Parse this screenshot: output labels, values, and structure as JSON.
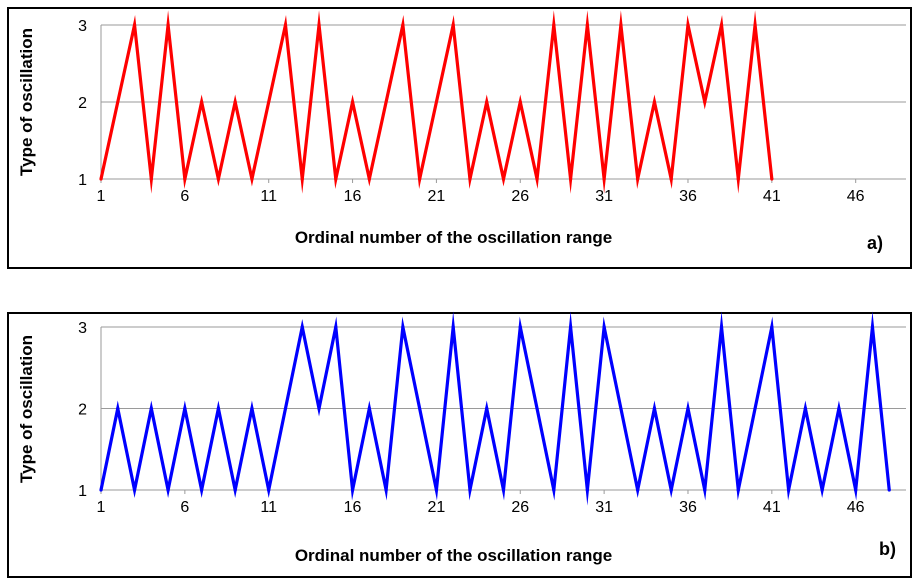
{
  "chart_data": [
    {
      "type": "line",
      "panel_label": "a)",
      "xlabel": "Ordinal number of the oscillation range",
      "ylabel": "Type of oscillation",
      "x_ticks": [
        "1",
        "6",
        "11",
        "16",
        "21",
        "26",
        "31",
        "36",
        "41",
        "46"
      ],
      "y_ticks": [
        "1",
        "2",
        "3"
      ],
      "xlim": [
        1,
        49
      ],
      "ylim": [
        1,
        3
      ],
      "grid": "horizontal",
      "series": [
        {
          "color": "#ff0000",
          "x": [
            1,
            3,
            4,
            5,
            6,
            7,
            8,
            9,
            10,
            12,
            13,
            14,
            15,
            16,
            17,
            19,
            20,
            22,
            23,
            24,
            25,
            26,
            27,
            28,
            29,
            30,
            31,
            32,
            33,
            34,
            35,
            36,
            37,
            38,
            39,
            40,
            41
          ],
          "values": [
            1,
            3,
            1,
            3,
            1,
            2,
            1,
            2,
            1,
            3,
            1,
            3,
            1,
            2,
            1,
            3,
            1,
            3,
            1,
            2,
            1,
            2,
            1,
            3,
            1,
            3,
            1,
            3,
            1,
            2,
            1,
            3,
            2,
            3,
            1,
            3,
            1
          ]
        }
      ]
    },
    {
      "type": "line",
      "panel_label": "b)",
      "xlabel": "Ordinal number of the oscillation range",
      "ylabel": "Type of oscillation",
      "x_ticks": [
        "1",
        "6",
        "11",
        "16",
        "21",
        "26",
        "31",
        "36",
        "41",
        "46"
      ],
      "y_ticks": [
        "1",
        "2",
        "3"
      ],
      "xlim": [
        1,
        49
      ],
      "ylim": [
        1,
        3
      ],
      "grid": "horizontal",
      "series": [
        {
          "color": "#0000ff",
          "x": [
            1,
            2,
            3,
            4,
            5,
            6,
            7,
            8,
            9,
            10,
            11,
            13,
            14,
            15,
            16,
            17,
            18,
            19,
            21,
            22,
            23,
            24,
            25,
            26,
            28,
            29,
            30,
            31,
            33,
            34,
            35,
            36,
            37,
            38,
            39,
            41,
            42,
            43,
            44,
            45,
            46,
            47,
            48
          ],
          "values": [
            1,
            2,
            1,
            2,
            1,
            2,
            1,
            2,
            1,
            2,
            1,
            3,
            2,
            3,
            1,
            2,
            1,
            3,
            1,
            3,
            1,
            2,
            1,
            3,
            1,
            3,
            1,
            3,
            1,
            2,
            1,
            2,
            1,
            3,
            1,
            3,
            1,
            2,
            1,
            2,
            1,
            3,
            1
          ]
        }
      ]
    }
  ]
}
